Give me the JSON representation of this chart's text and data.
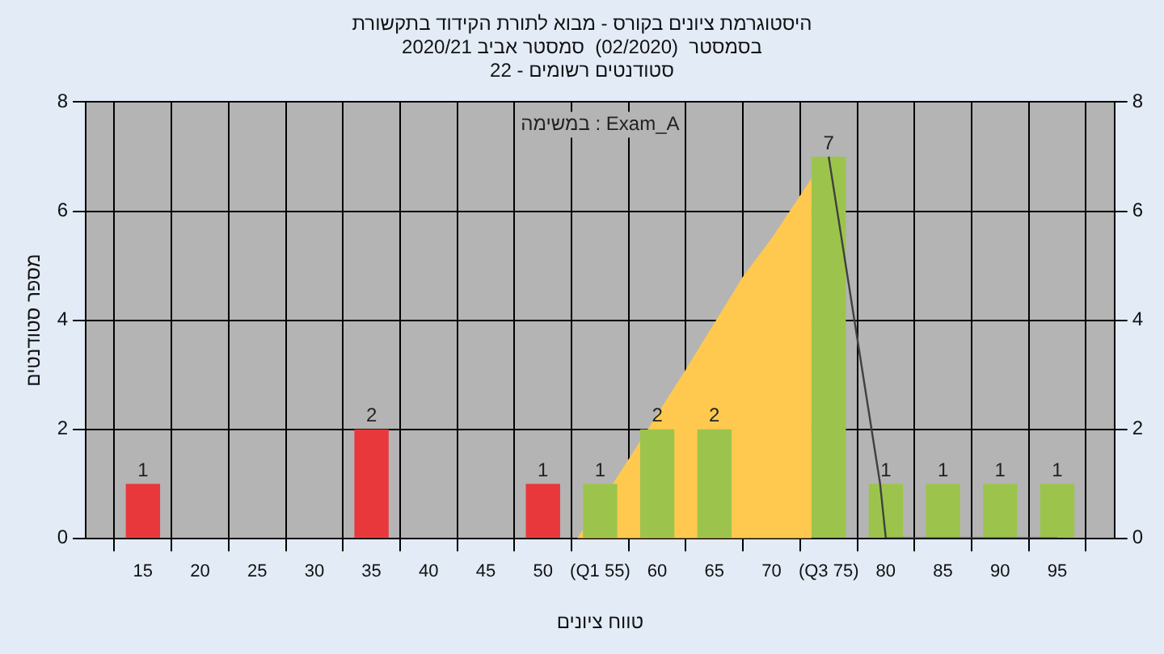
{
  "chart_data": {
    "type": "bar",
    "title": "היסטוגרמת ציונים בקורס - מבוא לתורת הקידוד בתקשורת",
    "subtitle": "בסמסטר  (02/2020)  סמסטר אביב 2020/21\nסטודנטים רשומים - 22",
    "xlabel": "טווח ציונים",
    "ylabel": "מספר סטודנטים",
    "annotations": [
      "במשימה : Exam_A"
    ],
    "series": [
      {
        "type": "area",
        "color": "#ffc94f",
        "x": [
          53,
          57.5,
          62.5,
          67.5,
          70,
          73.5
        ],
        "values": [
          0,
          1.45,
          3.1,
          4.8,
          5.5,
          6.6
        ]
      },
      {
        "x": [
          15,
          35,
          50,
          55,
          60,
          65,
          75,
          80,
          85,
          90,
          95
        ],
        "values": [
          1,
          2,
          1,
          1,
          2,
          2,
          7,
          1,
          1,
          1,
          1
        ],
        "colors": [
          "#e8383c",
          "#e8383c",
          "#e8383c",
          "#9cc44c",
          "#9cc44c",
          "#9cc44c",
          "#9cc44c",
          "#9cc44c",
          "#9cc44c",
          "#9cc44c",
          "#9cc44c"
        ],
        "value_labels": [
          "1",
          "2",
          "1",
          "1",
          "2",
          "2",
          "7",
          "1",
          "1",
          "1",
          "1"
        ]
      },
      {
        "type": "line",
        "color": "#404040",
        "x": [
          75,
          79.5,
          80,
          95
        ],
        "values": [
          7,
          1,
          0,
          0
        ]
      }
    ],
    "xlim": [
      10,
      100
    ],
    "xticks": [
      {
        "value": 10,
        "label": null
      },
      15,
      20,
      25,
      30,
      35,
      40,
      45,
      50,
      {
        "value": 55,
        "label": "(Q1 55)"
      },
      60,
      65,
      70,
      {
        "value": 75,
        "label": "(Q3 75)"
      },
      80,
      85,
      90,
      95,
      {
        "value": 100,
        "label": null
      }
    ],
    "ylim": [
      0,
      8
    ],
    "yticks": [
      0,
      2,
      4,
      6,
      8
    ],
    "y2lim": [
      0,
      8
    ],
    "y2ticks": [
      0,
      2,
      4,
      6,
      8
    ],
    "grid": true,
    "legend": false
  }
}
